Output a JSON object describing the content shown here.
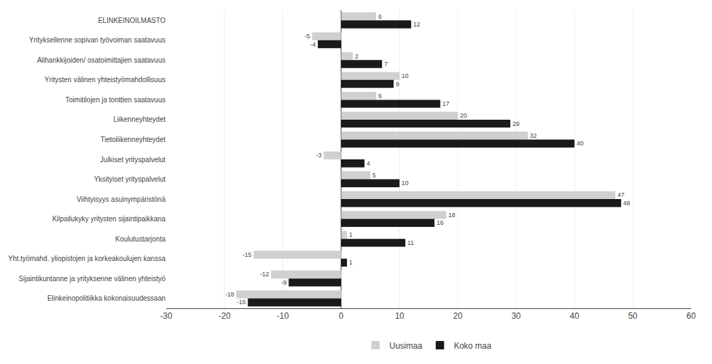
{
  "chart_data": {
    "type": "bar",
    "orientation": "horizontal",
    "categories": [
      "ELINKEINOILMASTO",
      "Yrityksellenne sopivan työvoiman saatavuus",
      "Alihankkijoiden/ osatoimittajien saatavuus",
      "Yritysten välinen yhteistyömahdollisuus",
      "Toimitilojen ja tonttien saatavuus",
      "Liikenneyhteydet",
      "Tietoliikenneyhteydet",
      "Julkiset yrityspalvelut",
      "Yksityiset yrityspalvelut",
      "Viihtyisyys asuinympäristönä",
      "Kilpailukyky yritysten sijaintipaikkana",
      "Koulutustarjonta",
      "Yht.työmahd. yliopistojen ja korkeakoulujen kanssa",
      "Sijaintikuntanne ja yrityksenne välinen yhteistyö",
      "Elinkeinopolitiikka kokonaisuudessaan"
    ],
    "series": [
      {
        "name": "Uusimaa",
        "color": "#d0d0d0",
        "values": [
          6,
          -5,
          2,
          10,
          6,
          20,
          32,
          -3,
          5,
          47,
          18,
          1,
          -15,
          -12,
          -18
        ]
      },
      {
        "name": "Koko maa",
        "color": "#1a1a1a",
        "values": [
          12,
          -4,
          7,
          9,
          17,
          29,
          40,
          4,
          10,
          48,
          16,
          11,
          1,
          -9,
          -16
        ]
      }
    ],
    "xlim": [
      -30,
      60
    ],
    "xticks": [
      -30,
      -20,
      -10,
      0,
      10,
      20,
      30,
      40,
      50,
      60
    ],
    "grid": true,
    "data_labels": true,
    "legend": "bottom"
  }
}
